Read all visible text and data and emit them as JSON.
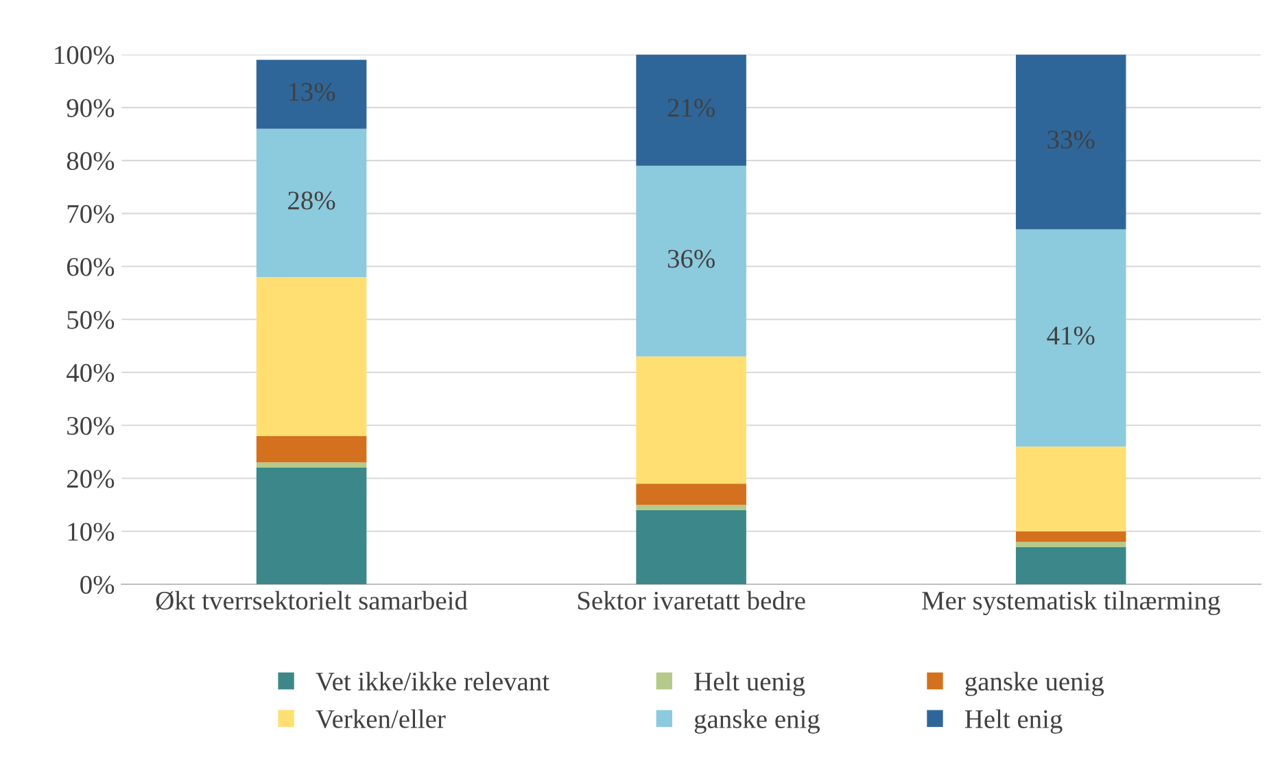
{
  "chart_data": {
    "type": "bar",
    "stacked": true,
    "categories": [
      "Økt tverrsektorielt samarbeid",
      "Sektor ivaretatt bedre",
      "Mer systematisk tilnærming"
    ],
    "series": [
      {
        "name": "Vet ikke/ikke relevant",
        "color": "#3c8789",
        "values": [
          22,
          14,
          7
        ]
      },
      {
        "name": "Helt uenig",
        "color": "#b5c98a",
        "values": [
          1,
          1,
          1
        ]
      },
      {
        "name": "ganske uenig",
        "color": "#d4711e",
        "values": [
          5,
          4,
          2
        ]
      },
      {
        "name": "Verken/eller",
        "color": "#ffdf71",
        "values": [
          30,
          24,
          16
        ]
      },
      {
        "name": "ganske enig",
        "color": "#8ccadd",
        "values": [
          28,
          36,
          41
        ],
        "value_labels": [
          "28%",
          "36%",
          "41%"
        ]
      },
      {
        "name": "Helt enig",
        "color": "#2f6699",
        "values": [
          13,
          21,
          33
        ],
        "value_labels": [
          "13%",
          "21%",
          "33%"
        ]
      }
    ],
    "ylim": [
      0,
      100
    ],
    "yticks": [
      {
        "value": 0,
        "label": "0%"
      },
      {
        "value": 10,
        "label": "10%"
      },
      {
        "value": 20,
        "label": "20%"
      },
      {
        "value": 30,
        "label": "30%"
      },
      {
        "value": 40,
        "label": "40%"
      },
      {
        "value": 50,
        "label": "50%"
      },
      {
        "value": 60,
        "label": "60%"
      },
      {
        "value": 70,
        "label": "70%"
      },
      {
        "value": 80,
        "label": "80%"
      },
      {
        "value": 90,
        "label": "90%"
      },
      {
        "value": 100,
        "label": "100%"
      }
    ],
    "grid": "y",
    "legend": "bottom"
  }
}
